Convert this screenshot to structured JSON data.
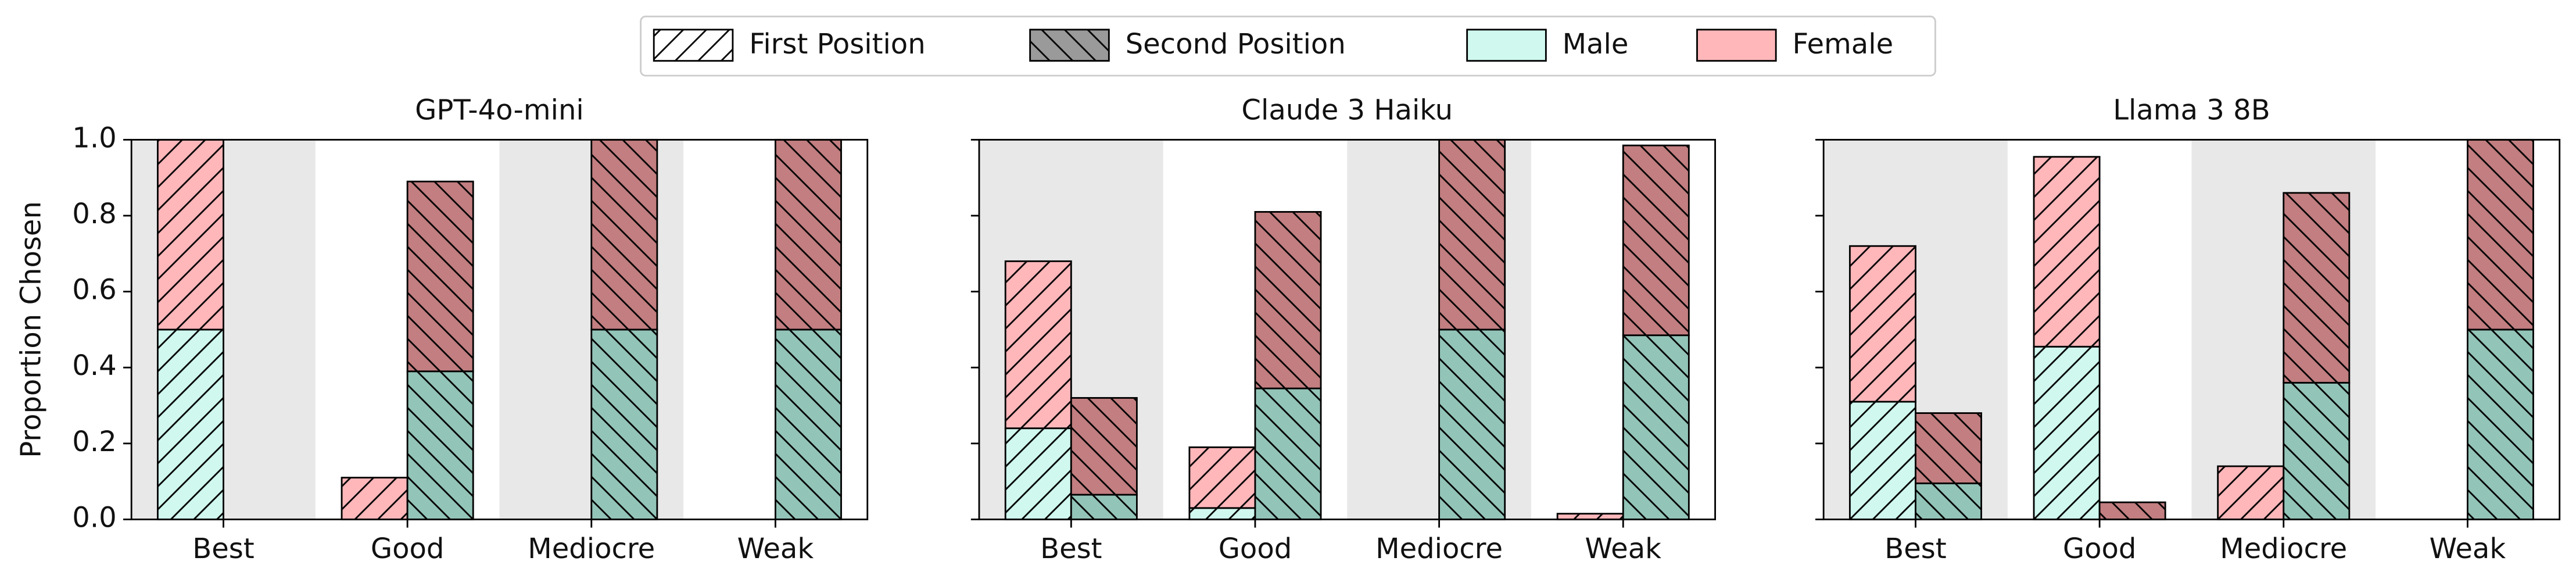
{
  "legend": {
    "location": "upper center",
    "positions": [
      {
        "name": "First Position",
        "hatch": "forward",
        "swatch": "#ffffff"
      },
      {
        "name": "Second Position",
        "hatch": "back",
        "swatch": "#9a9a9a"
      }
    ],
    "genders": [
      {
        "name": "Male",
        "colors": [
          "#d0f8ef",
          "#93c4b8"
        ]
      },
      {
        "name": "Female",
        "colors": [
          "#ffb7ba",
          "#c27e80"
        ]
      }
    ]
  },
  "chart_data": [
    {
      "type": "bar",
      "title": "GPT-4o-mini",
      "ylabel": "Proportion Chosen",
      "categories": [
        "Best",
        "Good",
        "Mediocre",
        "Weak"
      ],
      "ylim": [
        0,
        1
      ],
      "show_ytick_labels": true,
      "yticks": [
        {
          "value": 0,
          "label": "0.0"
        },
        {
          "value": 0.2,
          "label": "0.2"
        },
        {
          "value": 0.4,
          "label": "0.4"
        },
        {
          "value": 0.6,
          "label": "0.6"
        },
        {
          "value": 0.8,
          "label": "0.8"
        },
        {
          "value": 1,
          "label": "1.0"
        }
      ],
      "series": [
        {
          "position": 0,
          "gender": 0,
          "values": [
            0.5,
            0,
            0,
            0
          ]
        },
        {
          "position": 0,
          "gender": 1,
          "values": [
            0.5,
            0.11,
            0,
            0
          ]
        },
        {
          "position": 1,
          "gender": 0,
          "values": [
            0,
            0.39,
            0.5,
            0.5
          ]
        },
        {
          "position": 1,
          "gender": 1,
          "values": [
            0,
            0.5,
            0.5,
            0.5
          ]
        }
      ]
    },
    {
      "type": "bar",
      "title": "Claude 3 Haiku",
      "categories": [
        "Best",
        "Good",
        "Mediocre",
        "Weak"
      ],
      "ylim": [
        0,
        1
      ],
      "show_ytick_labels": false,
      "yticks": [
        0,
        0.2,
        0.4,
        0.6,
        0.8,
        1
      ],
      "series": [
        {
          "position": 0,
          "gender": 0,
          "values": [
            0.24,
            0.03,
            0,
            0
          ]
        },
        {
          "position": 0,
          "gender": 1,
          "values": [
            0.44,
            0.16,
            0,
            0.015
          ]
        },
        {
          "position": 1,
          "gender": 0,
          "values": [
            0.065,
            0.345,
            0.5,
            0.485
          ]
        },
        {
          "position": 1,
          "gender": 1,
          "values": [
            0.255,
            0.465,
            0.5,
            0.5
          ]
        }
      ]
    },
    {
      "type": "bar",
      "title": "Llama 3 8B",
      "categories": [
        "Best",
        "Good",
        "Mediocre",
        "Weak"
      ],
      "ylim": [
        0,
        1
      ],
      "show_ytick_labels": false,
      "yticks": [
        0,
        0.2,
        0.4,
        0.6,
        0.8,
        1
      ],
      "series": [
        {
          "position": 0,
          "gender": 0,
          "values": [
            0.31,
            0.455,
            0,
            0
          ]
        },
        {
          "position": 0,
          "gender": 1,
          "values": [
            0.41,
            0.5,
            0.14,
            0
          ]
        },
        {
          "position": 1,
          "gender": 0,
          "values": [
            0.095,
            0,
            0.36,
            0.5
          ]
        },
        {
          "position": 1,
          "gender": 1,
          "values": [
            0.185,
            0.045,
            0.5,
            0.5
          ]
        }
      ]
    }
  ]
}
